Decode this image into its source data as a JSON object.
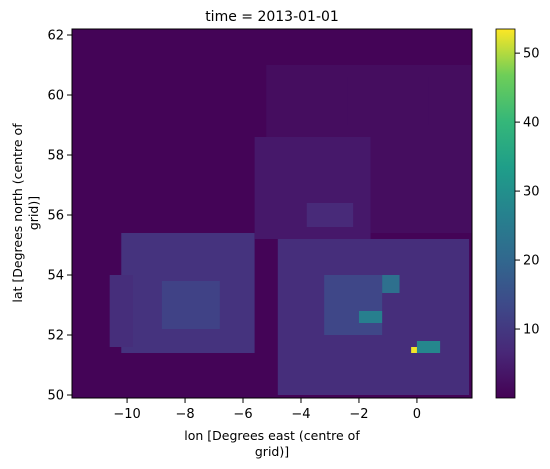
{
  "chart_data": {
    "type": "heatmap",
    "title": "time = 2013-01-01",
    "xlabel": [
      "lon [Degrees east (centre of",
      "grid)]"
    ],
    "ylabel": [
      "lat [Degrees north (centre of",
      "grid)]"
    ],
    "xlim": [
      -11.9,
      1.9
    ],
    "ylim": [
      49.9,
      62.2
    ],
    "x_ticks": [
      -10,
      -8,
      -6,
      -4,
      -2,
      0
    ],
    "x_tick_labels": [
      "−10",
      "−8",
      "−6",
      "−4",
      "−2",
      "0"
    ],
    "y_ticks": [
      50,
      52,
      54,
      56,
      58,
      60,
      62
    ],
    "y_tick_labels": [
      "50",
      "52",
      "54",
      "56",
      "58",
      "60",
      "62"
    ],
    "grid": false,
    "colormap": "viridis",
    "colorbar": {
      "vmin": 0,
      "vmax": 53.5,
      "ticks": [
        10,
        20,
        30,
        40,
        50
      ],
      "tick_labels": [
        "10",
        "20",
        "30",
        "40",
        "50"
      ]
    },
    "cell_size_deg": [
      0.4,
      0.4
    ],
    "background_value": 0.5,
    "regions": [
      {
        "name": "sea-east-lowvalue",
        "lon": [
          -5.2,
          1.9
        ],
        "lat": [
          55.4,
          61.0
        ],
        "value": 2
      },
      {
        "name": "sea-north-upper",
        "lon": [
          -2.4,
          0.4
        ],
        "lat": [
          59.0,
          60.6
        ],
        "value": 2
      },
      {
        "name": "ireland",
        "lon": [
          -10.2,
          -5.6
        ],
        "lat": [
          51.4,
          55.4
        ],
        "value": 9
      },
      {
        "name": "ireland-west-edge",
        "lon": [
          -10.6,
          -9.8
        ],
        "lat": [
          51.6,
          54.0
        ],
        "value": 8
      },
      {
        "name": "ireland-central",
        "lon": [
          -8.8,
          -6.8
        ],
        "lat": [
          52.2,
          53.8
        ],
        "value": 12
      },
      {
        "name": "scotland",
        "lon": [
          -5.6,
          -1.6
        ],
        "lat": [
          55.2,
          58.6
        ],
        "value": 4
      },
      {
        "name": "scotland-central",
        "lon": [
          -3.8,
          -2.2
        ],
        "lat": [
          55.6,
          56.4
        ],
        "value": 7
      },
      {
        "name": "england-wales",
        "lon": [
          -4.8,
          1.8
        ],
        "lat": [
          50.0,
          55.2
        ],
        "value": 8
      },
      {
        "name": "england-midlands",
        "lon": [
          -3.2,
          -1.2
        ],
        "lat": [
          52.0,
          54.0
        ],
        "value": 13
      },
      {
        "name": "leeds-area",
        "lon": [
          -1.2,
          -0.6
        ],
        "lat": [
          53.4,
          54.0
        ],
        "value": 22
      },
      {
        "name": "birmingham-area",
        "lon": [
          -2.0,
          -1.2
        ],
        "lat": [
          52.4,
          52.8
        ],
        "value": 26
      },
      {
        "name": "london-area",
        "lon": [
          0.0,
          0.8
        ],
        "lat": [
          51.4,
          51.8
        ],
        "value": 28
      },
      {
        "name": "london-core",
        "lon": [
          -0.2,
          0.0
        ],
        "lat": [
          51.4,
          51.6
        ],
        "value": 53
      }
    ]
  }
}
